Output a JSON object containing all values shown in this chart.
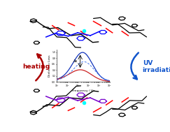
{
  "bg_color": "#ffffff",
  "heating_color": "#aa0000",
  "uv_color": "#1155cc",
  "heating_label": "heating",
  "uv_label": "UV\nirradiation",
  "inset_xlabel": "Frequency / Hz",
  "inset_ylabel": "Dielectric Loss",
  "inset_annotation": "Δε",
  "curve_blue_color": "#1133bb",
  "curve_red_color": "#cc2222",
  "curve_blue_dash_color": "#4477ee",
  "figsize": [
    2.43,
    1.89
  ],
  "dpi": 100
}
